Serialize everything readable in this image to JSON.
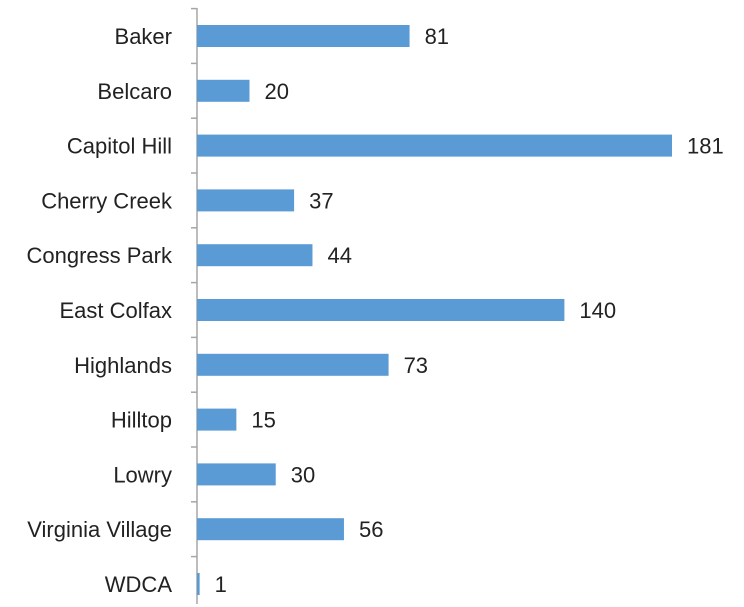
{
  "chart_data": {
    "type": "bar",
    "orientation": "horizontal",
    "categories": [
      "Baker",
      "Belcaro",
      "Capitol Hill",
      "Cherry Creek",
      "Congress Park",
      "East Colfax",
      "Highlands",
      "Hilltop",
      "Lowry",
      "Virginia Village",
      "WDCA"
    ],
    "values": [
      81,
      20,
      181,
      37,
      44,
      140,
      73,
      15,
      30,
      56,
      1
    ],
    "title": "",
    "xlabel": "",
    "ylabel": "",
    "xlim": [
      0,
      181
    ],
    "grid": false,
    "legend": "none",
    "data_labels": true,
    "bar_color": "#5B9BD5",
    "axis_color": "#A6A6A6",
    "text_color": "#222222"
  }
}
